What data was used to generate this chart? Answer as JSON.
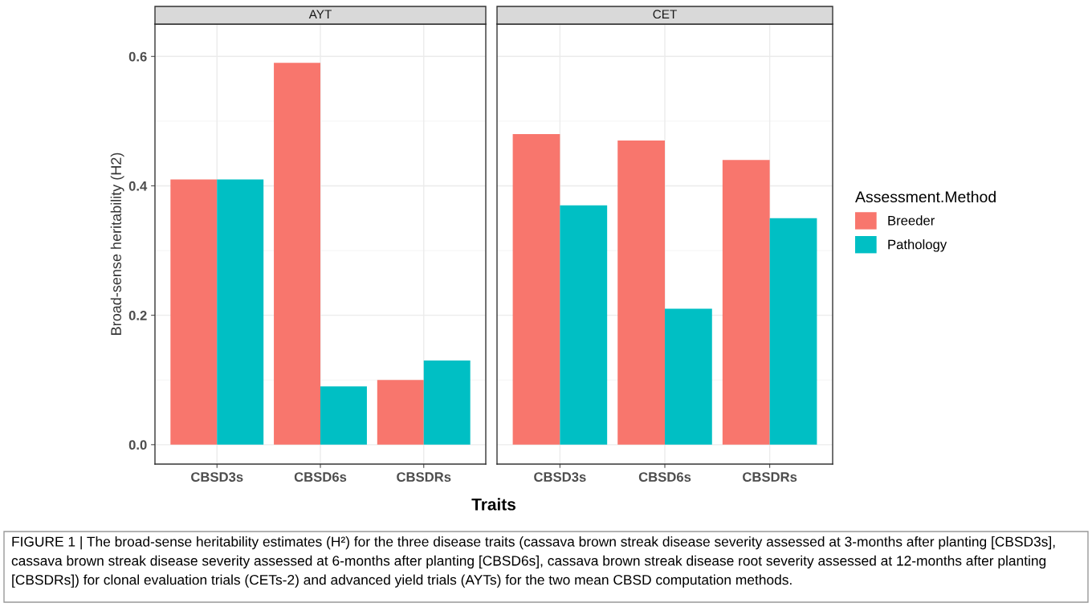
{
  "chart_data": [
    {
      "type": "bar",
      "title": "AYT",
      "xlabel": "Traits",
      "ylabel": "Broad-sense heritability (H2)",
      "categories": [
        "CBSD3s",
        "CBSD6s",
        "CBSDRs"
      ],
      "series": [
        {
          "name": "Breeder",
          "color": "#f8766d",
          "values": [
            0.41,
            0.59,
            0.1
          ]
        },
        {
          "name": "Pathology",
          "color": "#00bfc4",
          "values": [
            0.41,
            0.09,
            0.13
          ]
        }
      ],
      "ylim": [
        -0.03,
        0.65
      ],
      "yticks": [
        {
          "value": 0.0,
          "label": "0.0"
        },
        {
          "value": 0.2,
          "label": "0.2"
        },
        {
          "value": 0.4,
          "label": "0.4"
        },
        {
          "value": 0.6,
          "label": "0.6"
        }
      ],
      "grid": true,
      "legend": "right",
      "legend_title": "Assessment.Method",
      "annotations": [
        "FIGURE 1 | The broad-sense heritability estimates (H²) for the three disease traits (cassava brown streak disease severity assessed at 3-months after planting [CBSD3s], cassava brown streak disease severity assessed at 6-months after planting [CBSD6s], cassava brown streak disease root severity assessed at 12-months after planting [CBSDRs]) for clonal evaluation trials (CETs-2) and advanced yield trials (AYTs) for the two mean CBSD computation methods."
      ]
    },
    {
      "type": "bar",
      "title": "CET",
      "categories": [
        "CBSD3s",
        "CBSD6s",
        "CBSDRs"
      ],
      "series": [
        {
          "color": "#f8766d",
          "values": [
            0.48,
            0.47,
            0.44
          ]
        },
        {
          "color": "#00bfc4",
          "values": [
            0.37,
            0.21,
            0.35
          ]
        }
      ],
      "ylim": [
        -0.03,
        0.65
      ],
      "yticks": [
        0,
        0.2,
        0.4,
        0.6
      ],
      "grid": true,
      "tick_labels": "x"
    }
  ]
}
